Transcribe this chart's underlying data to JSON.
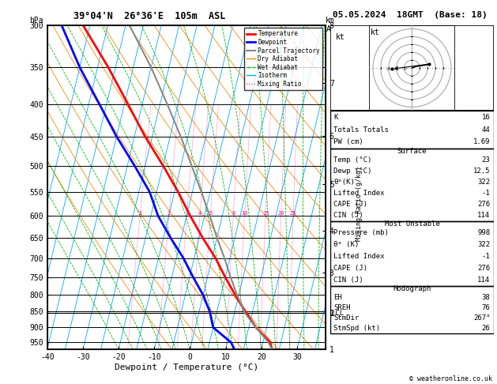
{
  "title_left": "39°04'N  26°36'E  105m  ASL",
  "title_right": "05.05.2024  18GMT  (Base: 18)",
  "xlabel": "Dewpoint / Temperature (°C)",
  "pressure_levels": [
    300,
    350,
    400,
    450,
    500,
    550,
    600,
    650,
    700,
    750,
    800,
    850,
    900,
    950
  ],
  "pressure_labels": [
    "300",
    "350",
    "400",
    "450",
    "500",
    "550",
    "600",
    "650",
    "700",
    "750",
    "800",
    "850",
    "900",
    "950"
  ],
  "xmin": -40,
  "xmax": 38,
  "pmin": 300,
  "pmax": 975,
  "km_ticks": [
    1,
    2,
    3,
    4,
    5,
    6,
    7,
    8
  ],
  "km_pressures": [
    975,
    840,
    712,
    598,
    495,
    405,
    326,
    257
  ],
  "lcl_pressure": 855,
  "isotherm_color": "#00AAFF",
  "dry_adiabat_color": "#FF8800",
  "wet_adiabat_color": "#00BB00",
  "mixing_ratio_color": "#FF00AA",
  "temperature_color": "#FF0000",
  "dewpoint_color": "#0000FF",
  "parcel_color": "#888888",
  "temp_profile_p": [
    975,
    950,
    900,
    850,
    800,
    750,
    700,
    650,
    600,
    550,
    500,
    450,
    400,
    350,
    300
  ],
  "temp_profile_t": [
    23,
    22,
    17,
    13,
    9,
    5,
    1,
    -4,
    -9,
    -14,
    -20,
    -27,
    -34,
    -42,
    -52
  ],
  "dewp_profile_p": [
    975,
    950,
    900,
    850,
    800,
    750,
    700,
    650,
    600,
    550,
    500,
    450,
    400,
    350,
    300
  ],
  "dewp_profile_t": [
    12.5,
    11,
    5,
    3,
    0,
    -4,
    -8,
    -13,
    -18,
    -22,
    -28,
    -35,
    -42,
    -50,
    -58
  ],
  "parcel_profile_p": [
    975,
    950,
    900,
    855,
    800,
    750,
    700,
    650,
    600,
    550,
    500,
    450,
    400,
    350,
    300
  ],
  "parcel_profile_t": [
    23,
    21.5,
    17,
    13,
    9.5,
    6.5,
    3.5,
    0,
    -3.5,
    -7.5,
    -12,
    -17,
    -23,
    -30,
    -39
  ],
  "stats_k": 16,
  "stats_tt": 44,
  "stats_pw": 1.69,
  "surf_temp": 23,
  "surf_dewp": 12.5,
  "surf_theta": 322,
  "surf_li": -1,
  "surf_cape": 276,
  "surf_cin": 114,
  "mu_pressure": 998,
  "mu_theta": 322,
  "mu_li": -1,
  "mu_cape": 276,
  "mu_cin": 114,
  "hodo_eh": 38,
  "hodo_sreh": 76,
  "hodo_stmdir": 267,
  "hodo_stmspd": 26,
  "copyright": "© weatheronline.co.uk",
  "skew": 22
}
